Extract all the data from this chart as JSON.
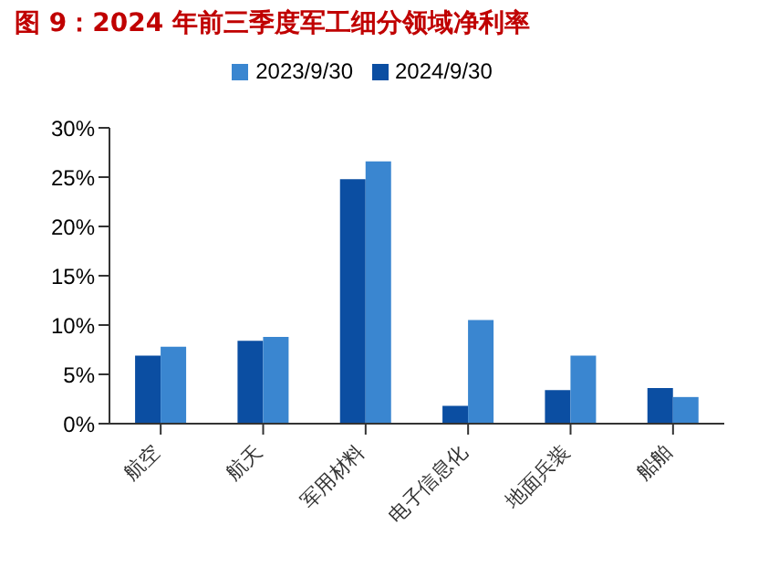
{
  "chart_data": {
    "type": "bar",
    "title": "图 9：2024 年前三季度军工细分领域净利率",
    "categories": [
      "航空",
      "航天",
      "军用材料",
      "电子信息化",
      "地面兵装",
      "船舶"
    ],
    "series": [
      {
        "name": "2024/9/30",
        "color": "#0b4ea2",
        "values": [
          6.9,
          8.4,
          24.8,
          1.8,
          3.4,
          3.6
        ]
      },
      {
        "name": "2023/9/30",
        "color": "#3a86d0",
        "values": [
          7.8,
          8.8,
          26.6,
          10.5,
          6.9,
          2.7
        ]
      }
    ],
    "ylim": [
      0,
      30
    ],
    "yticks": [
      {
        "value": 0,
        "label": "0%"
      },
      {
        "value": 5,
        "label": "5%"
      },
      {
        "value": 10,
        "label": "10%"
      },
      {
        "value": 15,
        "label": "15%"
      },
      {
        "value": 20,
        "label": "20%"
      },
      {
        "value": 25,
        "label": "25%"
      },
      {
        "value": 30,
        "label": "30%"
      }
    ],
    "legend": "top",
    "grid": false
  }
}
